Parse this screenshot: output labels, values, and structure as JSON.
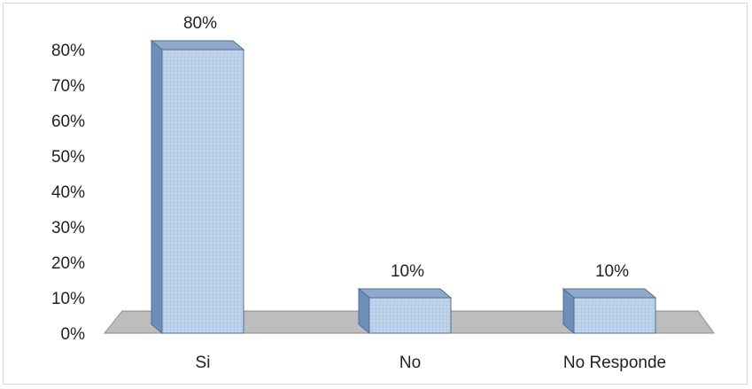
{
  "chart_data": {
    "type": "bar",
    "categories": [
      "Si",
      "No",
      "No Responde"
    ],
    "values": [
      80,
      10,
      10
    ],
    "data_labels": [
      "80%",
      "10%",
      "10%"
    ],
    "y_ticks": [
      "0%",
      "10%",
      "20%",
      "30%",
      "40%",
      "50%",
      "60%",
      "70%",
      "80%"
    ],
    "ylim": [
      0,
      80
    ],
    "grid": false,
    "style": "3d-column",
    "colors": {
      "bar_front": "#b8cde6",
      "bar_side": "#6e8fb8",
      "bar_top": "#8ea9cc",
      "bar_edge": "#4f6f99",
      "floor": "#bdbdbd",
      "floor_edge": "#8c8c8c"
    }
  }
}
